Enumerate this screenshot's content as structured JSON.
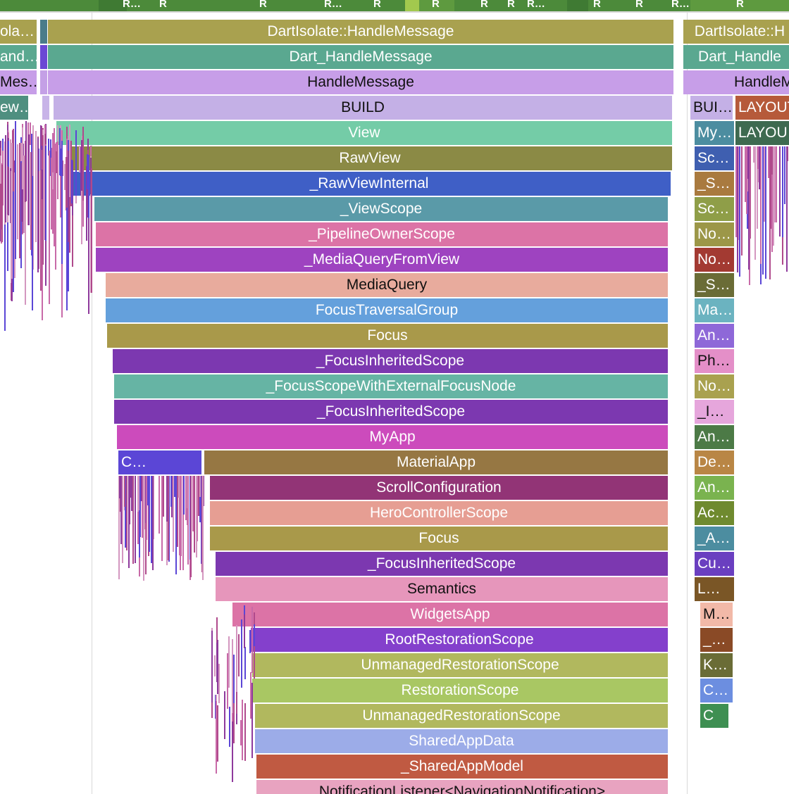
{
  "top_track": {
    "labels": [
      "R…",
      "R",
      "R",
      "R…",
      "R",
      "R",
      "R",
      "R",
      "R…",
      "R",
      "R",
      "R…",
      "R"
    ]
  },
  "main_call_stack": {
    "slices": [
      {
        "label": "DartIsolate::HandleMessage",
        "color": "#a9a14f",
        "text": "#ffffff"
      },
      {
        "label": "Dart_HandleMessage",
        "color": "#5aa890",
        "text": "#ffffff"
      },
      {
        "label": "HandleMessage",
        "color": "#c79ee8",
        "text": "#111111"
      },
      {
        "label": "BUILD",
        "color": "#c4b0e6",
        "text": "#111111"
      },
      {
        "label": "View",
        "color": "#74cca7",
        "text": "#ffffff"
      },
      {
        "label": "RawView",
        "color": "#8b8a45",
        "text": "#ffffff"
      },
      {
        "label": "_RawViewInternal",
        "color": "#3f5fc6",
        "text": "#ffffff"
      },
      {
        "label": "_ViewScope",
        "color": "#5a9aa8",
        "text": "#ffffff"
      },
      {
        "label": "_PipelineOwnerScope",
        "color": "#dc73a6",
        "text": "#ffffff"
      },
      {
        "label": "_MediaQueryFromView",
        "color": "#9e43c0",
        "text": "#ffffff"
      },
      {
        "label": "MediaQuery",
        "color": "#e8ab9d",
        "text": "#111111"
      },
      {
        "label": "FocusTraversalGroup",
        "color": "#64a0dc",
        "text": "#ffffff"
      },
      {
        "label": "Focus",
        "color": "#a9994a",
        "text": "#ffffff"
      },
      {
        "label": "_FocusInheritedScope",
        "color": "#7c38b0",
        "text": "#ffffff"
      },
      {
        "label": "_FocusScopeWithExternalFocusNode",
        "color": "#66b4a4",
        "text": "#ffffff"
      },
      {
        "label": "_FocusInheritedScope",
        "color": "#7c38b0",
        "text": "#ffffff"
      },
      {
        "label": "MyApp",
        "color": "#cc4bbc",
        "text": "#ffffff"
      },
      {
        "label": "MaterialApp",
        "color": "#967743",
        "text": "#ffffff"
      },
      {
        "label": "ScrollConfiguration",
        "color": "#923476",
        "text": "#ffffff"
      },
      {
        "label": "HeroControllerScope",
        "color": "#e69e93",
        "text": "#ffffff"
      },
      {
        "label": "Focus",
        "color": "#a9994a",
        "text": "#ffffff"
      },
      {
        "label": "_FocusInheritedScope",
        "color": "#7c38b0",
        "text": "#ffffff"
      },
      {
        "label": "Semantics",
        "color": "#e696bb",
        "text": "#111111"
      },
      {
        "label": "WidgetsApp",
        "color": "#dc73a6",
        "text": "#ffffff"
      },
      {
        "label": "RootRestorationScope",
        "color": "#8440cc",
        "text": "#ffffff"
      },
      {
        "label": "UnmanagedRestorationScope",
        "color": "#b1b85e",
        "text": "#ffffff"
      },
      {
        "label": "RestorationScope",
        "color": "#a9c763",
        "text": "#ffffff"
      },
      {
        "label": "UnmanagedRestorationScope",
        "color": "#b1b85e",
        "text": "#ffffff"
      },
      {
        "label": "SharedAppData",
        "color": "#9cace8",
        "text": "#ffffff"
      },
      {
        "label": "_SharedAppModel",
        "color": "#c05a42",
        "text": "#ffffff"
      },
      {
        "label": "NotificationListener<NavigationNotification>",
        "color": "#e8a3c0",
        "text": "#111111"
      }
    ],
    "side_label": "C…"
  },
  "left_column": {
    "slices": [
      {
        "label": "ola…",
        "color": "#a9a14f",
        "text": "#ffffff"
      },
      {
        "label": "and…",
        "color": "#5aa890",
        "text": "#ffffff"
      },
      {
        "label": "Mes…",
        "color": "#c79ee8",
        "text": "#111111"
      },
      {
        "label": "ew…",
        "color": "#4f8f80",
        "text": "#ffffff"
      }
    ]
  },
  "right_column": {
    "top_slices": [
      {
        "label": "DartIsolate::H",
        "color": "#a9a14f",
        "text": "#ffffff"
      },
      {
        "label": "Dart_Handle",
        "color": "#5aa890",
        "text": "#ffffff"
      },
      {
        "label": "HandleM",
        "color": "#c79ee8",
        "text": "#111111"
      }
    ],
    "build_label": "BUI…",
    "layout_labels": [
      "LAYOUT",
      "LAYOU"
    ],
    "narrow_slices": [
      {
        "label": "My…",
        "color": "#4c8da0",
        "text": "#ffffff"
      },
      {
        "label": "Sc…",
        "color": "#3f5fb0",
        "text": "#ffffff"
      },
      {
        "label": "_S…",
        "color": "#a97a3f",
        "text": "#ffffff"
      },
      {
        "label": "Sc…",
        "color": "#8f9e48",
        "text": "#ffffff"
      },
      {
        "label": "No…",
        "color": "#9c9748",
        "text": "#ffffff"
      },
      {
        "label": "No…",
        "color": "#a33a32",
        "text": "#ffffff"
      },
      {
        "label": "_S…",
        "color": "#6a6c36",
        "text": "#ffffff"
      },
      {
        "label": "Ma…",
        "color": "#6bb3c0",
        "text": "#ffffff"
      },
      {
        "label": "An…",
        "color": "#8e68d8",
        "text": "#ffffff"
      },
      {
        "label": "Ph…",
        "color": "#e48fc8",
        "text": "#111111"
      },
      {
        "label": "No…",
        "color": "#a9a14f",
        "text": "#ffffff"
      },
      {
        "label": "_I…",
        "color": "#e6a6dc",
        "text": "#111111"
      },
      {
        "label": "An…",
        "color": "#4c7a46",
        "text": "#ffffff"
      },
      {
        "label": "De…",
        "color": "#b98645",
        "text": "#ffffff"
      },
      {
        "label": "An…",
        "color": "#7ab34f",
        "text": "#ffffff"
      },
      {
        "label": "Ac…",
        "color": "#6f8a2f",
        "text": "#ffffff"
      },
      {
        "label": "_A…",
        "color": "#4c8da0",
        "text": "#ffffff"
      },
      {
        "label": "Cu…",
        "color": "#6a3fc0",
        "text": "#ffffff"
      },
      {
        "label": "L…",
        "color": "#7a5626",
        "text": "#ffffff"
      },
      {
        "label": "M…",
        "color": "#f2b9a8",
        "text": "#111111"
      },
      {
        "label": "_…",
        "color": "#8a4a26",
        "text": "#ffffff"
      },
      {
        "label": "K…",
        "color": "#6a6c36",
        "text": "#ffffff"
      },
      {
        "label": "C…",
        "color": "#6c8ee0",
        "text": "#ffffff"
      },
      {
        "label": "C",
        "color": "#3e8f52",
        "text": "#ffffff"
      }
    ]
  }
}
